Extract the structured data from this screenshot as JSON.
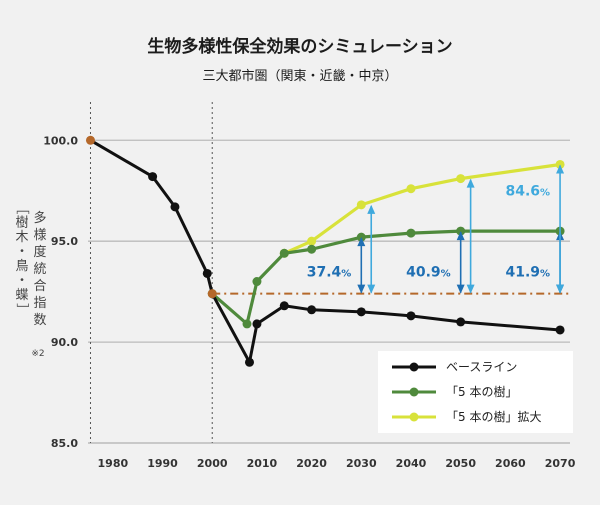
{
  "chart_data": {
    "type": "line",
    "title": "生物多様性保全効果のシミュレーション",
    "subtitle": "三大都市圏（関東・近畿・中京）",
    "ylabel_main": "多様度統合指数",
    "ylabel_bracket": "［樹木・鳥・蝶］",
    "ylabel_note": "※2",
    "ylim": [
      85,
      101.5
    ],
    "xlim": [
      1975,
      2072
    ],
    "y_ticks": [
      "100.0",
      "95.0",
      "90.0",
      "85.0"
    ],
    "y_tick_values": [
      100,
      95,
      90,
      85
    ],
    "x_ticks": [
      "1980",
      "1990",
      "2000",
      "2010",
      "2020",
      "2030",
      "2040",
      "2050",
      "2060",
      "2070"
    ],
    "x_tick_values": [
      1980,
      1990,
      2000,
      2010,
      2020,
      2030,
      2040,
      2050,
      2060,
      2070
    ],
    "vertical_guides": [
      1975.5,
      2000
    ],
    "baseline_reference": 92.4,
    "colors": {
      "baseline": "#111111",
      "five_trees": "#4f8a3c",
      "expanded": "#d8e23a",
      "reference": "#b5682a",
      "arrow_dark": "#1f6fb3",
      "arrow_light": "#3fa9dd",
      "marker_start": "#b5682a",
      "grid": "#bbbbbb"
    },
    "series": [
      {
        "name": "ベースライン",
        "color_key": "baseline",
        "x": [
          1975.5,
          1988,
          1992.5,
          1999,
          2000,
          2007.5,
          2009,
          2014.5,
          2020,
          2030,
          2040,
          2050,
          2070
        ],
        "y": [
          100.0,
          98.2,
          96.7,
          93.4,
          92.4,
          89.0,
          90.9,
          91.8,
          91.6,
          91.5,
          91.3,
          91.0,
          90.6
        ]
      },
      {
        "name": "「5 本の樹」",
        "color_key": "five_trees",
        "x": [
          2000,
          2007,
          2009,
          2014.5,
          2020,
          2030,
          2040,
          2050,
          2070
        ],
        "y": [
          92.4,
          90.9,
          93.0,
          94.4,
          94.6,
          95.2,
          95.4,
          95.5,
          95.5
        ]
      },
      {
        "name": "「5 本の樹」拡大",
        "color_key": "expanded",
        "x": [
          2014.5,
          2020,
          2030,
          2040,
          2050,
          2070
        ],
        "y": [
          94.4,
          95.0,
          96.8,
          97.6,
          98.1,
          98.8
        ]
      }
    ],
    "annotations": [
      {
        "label": "37.4",
        "unit": "%",
        "x": 2030,
        "y_low": 92.4,
        "y_high": 95.2,
        "color_key": "arrow_dark"
      },
      {
        "label": "40.9",
        "unit": "%",
        "x": 2050,
        "y_low": 92.4,
        "y_high": 95.5,
        "color_key": "arrow_dark"
      },
      {
        "label": "41.9",
        "unit": "%",
        "x": 2070,
        "y_low": 92.4,
        "y_high": 95.5,
        "color_key": "arrow_dark"
      },
      {
        "label": "84.6",
        "unit": "%",
        "x": 2070,
        "y_low": 92.4,
        "y_high": 98.8,
        "color_key": "arrow_light"
      },
      {
        "label": "",
        "unit": "",
        "x": 2032,
        "y_low": 92.4,
        "y_high": 96.8,
        "color_key": "arrow_light"
      },
      {
        "label": "",
        "unit": "",
        "x": 2052,
        "y_low": 92.4,
        "y_high": 98.1,
        "color_key": "arrow_light"
      }
    ],
    "legend": {
      "placement": "bottom-right"
    }
  }
}
